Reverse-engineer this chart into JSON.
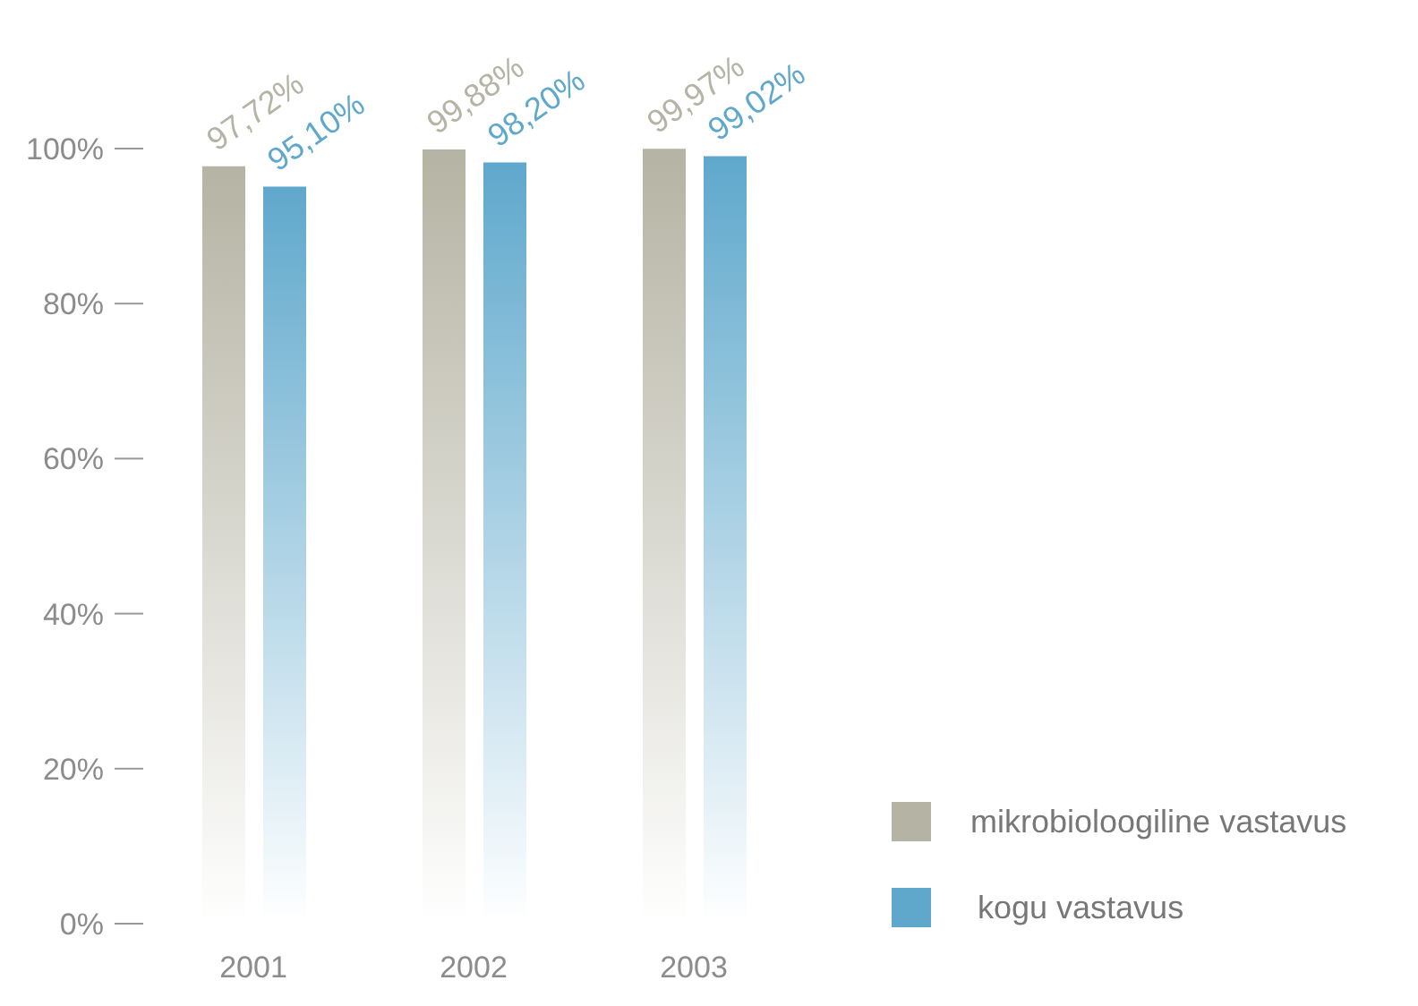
{
  "chart_data": {
    "type": "bar",
    "categories": [
      "2001",
      "2002",
      "2003"
    ],
    "series": [
      {
        "name": "mikrobioloogiline vastavus",
        "color": "#b5b3a3",
        "values": [
          97.72,
          99.88,
          99.97
        ],
        "value_labels": [
          "97,72%",
          "99,88%",
          "99,97%"
        ]
      },
      {
        "name": "kogu vastavus",
        "color": "#5fa8cc",
        "values": [
          95.1,
          98.2,
          99.02
        ],
        "value_labels": [
          "95,10%",
          "98,20%",
          "99,02%"
        ]
      }
    ],
    "ylim": [
      0,
      100
    ],
    "yticks": [
      {
        "value": 0,
        "label": "0%"
      },
      {
        "value": 20,
        "label": "20%"
      },
      {
        "value": 40,
        "label": "40%"
      },
      {
        "value": 60,
        "label": "60%"
      },
      {
        "value": 80,
        "label": "80%"
      },
      {
        "value": 100,
        "label": "100%"
      }
    ],
    "grid": false,
    "legend": "bottom right"
  }
}
